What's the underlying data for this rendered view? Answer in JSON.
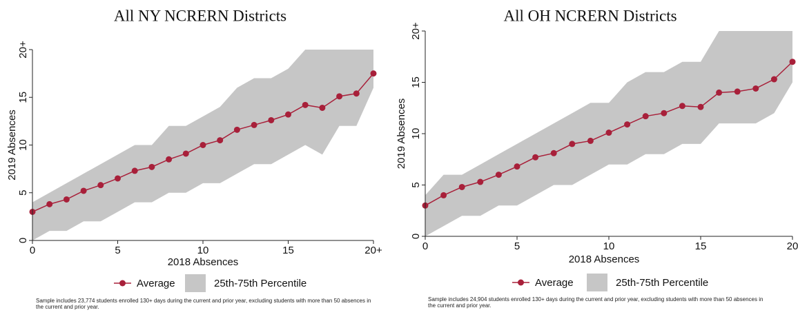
{
  "chart_data": [
    {
      "type": "line",
      "title": "All NY NCRERN Districts",
      "x_label": "2018 Absences",
      "y_label": "2019 Absences",
      "x": [
        0,
        1,
        2,
        3,
        4,
        5,
        6,
        7,
        8,
        9,
        10,
        11,
        12,
        13,
        14,
        15,
        16,
        17,
        18,
        19,
        20
      ],
      "series": [
        {
          "name": "Average",
          "color": "#a8203a",
          "values": [
            3.0,
            3.8,
            4.3,
            5.2,
            5.8,
            6.5,
            7.3,
            7.7,
            8.5,
            9.1,
            10.0,
            10.5,
            11.6,
            12.1,
            12.6,
            13.2,
            14.2,
            13.9,
            15.1,
            15.4,
            17.5
          ]
        },
        {
          "name": "25th-75th Percentile",
          "color": "#c6c6c6",
          "lower": [
            0,
            1,
            1,
            2,
            2,
            3,
            4,
            4,
            5,
            5,
            6,
            6,
            7,
            8,
            8,
            9,
            10,
            9,
            12,
            12,
            16
          ],
          "upper": [
            4,
            5,
            6,
            7,
            8,
            9,
            10,
            10,
            12,
            12,
            13,
            14,
            16,
            17,
            17,
            18,
            20,
            20,
            20,
            20,
            20
          ]
        }
      ],
      "xlim": [
        0,
        20
      ],
      "xticks": [
        0,
        5,
        10,
        15,
        {
          "value": 20,
          "label": "20+"
        }
      ],
      "ylim": [
        0,
        20
      ],
      "yticks": [
        0,
        5,
        10,
        15,
        {
          "value": 20,
          "label": "20+"
        }
      ],
      "grid": false,
      "note": "Sample includes 23,774 students enrolled 130+ days during the current and prior year, excluding students with more than 50 absences in the current and prior year."
    },
    {
      "type": "line",
      "title": "All OH NCRERN Districts",
      "x_label": "2018 Absences",
      "y_label": "2019 Absences",
      "x": [
        0,
        1,
        2,
        3,
        4,
        5,
        6,
        7,
        8,
        9,
        10,
        11,
        12,
        13,
        14,
        15,
        16,
        17,
        18,
        19,
        20
      ],
      "series": [
        {
          "name": "Average",
          "color": "#a8203a",
          "values": [
            3.0,
            4.0,
            4.8,
            5.3,
            6.0,
            6.8,
            7.7,
            8.1,
            9.0,
            9.3,
            10.1,
            10.9,
            11.7,
            12.0,
            12.7,
            12.6,
            14.0,
            14.1,
            14.4,
            15.3,
            17.0
          ]
        },
        {
          "name": "25th-75th Percentile",
          "color": "#c6c6c6",
          "lower": [
            0,
            1,
            2,
            2,
            3,
            3,
            4,
            5,
            5,
            6,
            7,
            7,
            8,
            8,
            9,
            9,
            11,
            11,
            11,
            12,
            15
          ],
          "upper": [
            4,
            6,
            6,
            7,
            8,
            9,
            10,
            11,
            12,
            13,
            13,
            15,
            16,
            16,
            17,
            17,
            20,
            20,
            20,
            20,
            20
          ]
        }
      ],
      "xlim": [
        0,
        20
      ],
      "xticks": [
        0,
        5,
        10,
        15,
        20
      ],
      "ylim": [
        0,
        20
      ],
      "yticks": [
        0,
        5,
        10,
        15,
        {
          "value": 20,
          "label": "20+"
        }
      ],
      "grid": false,
      "note": "Sample includes 24,904 students enrolled 130+ days during the current and prior year, excluding students with more than 50 absences in the current and prior year."
    }
  ]
}
